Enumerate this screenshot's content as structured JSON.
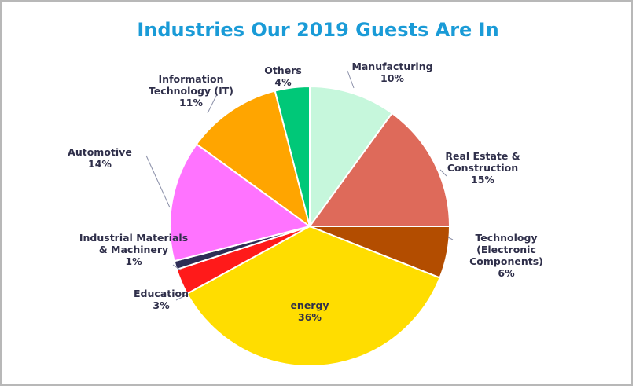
{
  "chart_data": {
    "type": "pie",
    "title": "Industries Our 2019 Guests Are In",
    "slices": [
      {
        "label": [
          "Manufacturing"
        ],
        "pct": "10%",
        "value": 10,
        "color": "#c6f7dc"
      },
      {
        "label": [
          "Real Estate &",
          "Construction"
        ],
        "pct": "15%",
        "value": 15,
        "color": "#de6a5a"
      },
      {
        "label": [
          "Technology",
          "(Electronic",
          "Components)"
        ],
        "pct": "6%",
        "value": 6,
        "color": "#b34d00"
      },
      {
        "label": [
          "energy"
        ],
        "pct": "36%",
        "value": 36,
        "color": "#ffdd00"
      },
      {
        "label": [
          "Education"
        ],
        "pct": "3%",
        "value": 3,
        "color": "#ff1a1a"
      },
      {
        "label": [
          "Industrial Materials",
          "& Machinery"
        ],
        "pct": "1%",
        "value": 1,
        "color": "#2e2e56"
      },
      {
        "label": [
          "Automotive"
        ],
        "pct": "14%",
        "value": 14,
        "color": "#ff73ff"
      },
      {
        "label": [
          "Information",
          "Technology (IT)"
        ],
        "pct": "11%",
        "value": 11,
        "color": "#ffa500"
      },
      {
        "label": [
          "Others"
        ],
        "pct": "4%",
        "value": 4,
        "color": "#00c878"
      }
    ]
  }
}
